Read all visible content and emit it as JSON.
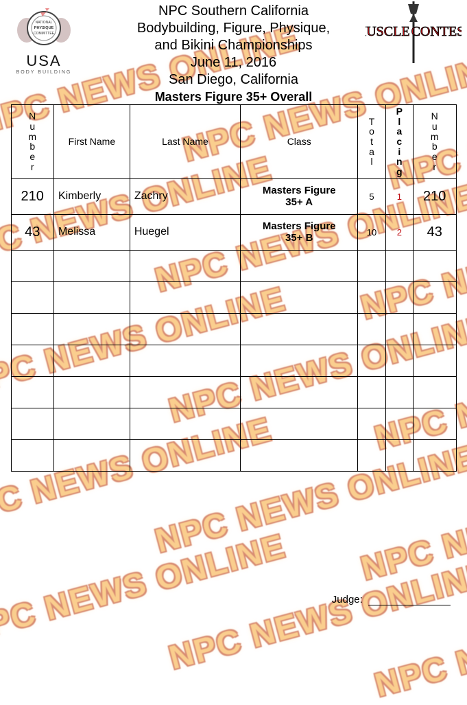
{
  "watermark_text": "NPC NEWS ONLINE",
  "watermark_color_fill": "#f7a733",
  "watermark_color_outline": "#b82e00",
  "header": {
    "line1": "NPC Southern California",
    "line2": "Bodybuilding, Figure, Physique,",
    "line3": "and Bikini Championships",
    "line4": "June 11, 2016",
    "line5": "San Diego, California"
  },
  "logo_left": {
    "seal_text_top": "NATIONAL",
    "seal_text_mid": "PHYSIQUE",
    "seal_text_bot": "COMMITTEE",
    "usa": "USA",
    "sub": "BODY BUILDING"
  },
  "logo_right": {
    "line1": "MUSCLE",
    "line2": "CONTEST"
  },
  "table_title": "Masters Figure 35+ Overall",
  "columns": {
    "number": "Number",
    "first": "First Name",
    "last": "Last Name",
    "class": "Class",
    "total": "Total",
    "placing": "Placing",
    "number2": "Number"
  },
  "rows": [
    {
      "number": "210",
      "first": "Kimberly",
      "last": "Zachry",
      "class": "Masters Figure 35+ A",
      "total": "5",
      "placing": "1",
      "number2": "210"
    },
    {
      "number": "43",
      "first": "Melissa",
      "last": "Huegel",
      "class": "Masters Figure 35+ B",
      "total": "10",
      "placing": "2",
      "number2": "43"
    }
  ],
  "empty_row_count": 7,
  "judge_label": "Judge:",
  "colors": {
    "background": "#ffffff",
    "border": "#000000",
    "placing_text": "#c01015",
    "logo_right_text": "#c01015"
  }
}
